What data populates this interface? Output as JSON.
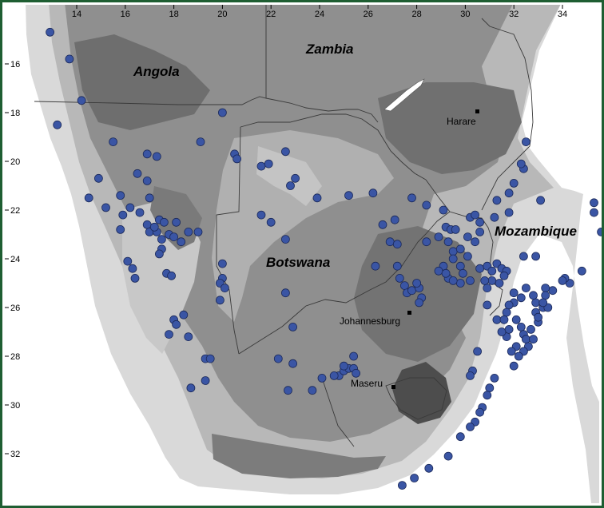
{
  "map": {
    "x_ticks": [
      "14",
      "16",
      "18",
      "20",
      "22",
      "24",
      "26",
      "28",
      "30",
      "32",
      "34"
    ],
    "y_ticks": [
      "16",
      "18",
      "20",
      "22",
      "24",
      "26",
      "28",
      "30",
      "32"
    ],
    "countries": {
      "angola": "Angola",
      "zambia": "Zambia",
      "botswana": "Botswana",
      "mozambique": "Mozambique"
    },
    "cities": {
      "harare": "Harare",
      "johannesburg": "Johannesburg",
      "maseru": "Maseru"
    },
    "colors": {
      "frame": "#1e5e32",
      "point_fill": "#3a55a4",
      "point_stroke": "#1c2a5a",
      "sea": "#ffffff",
      "lowland": "#d9d9d9",
      "mid": "#b8b8b8",
      "highland": "#8f8f8f",
      "mountain": "#6a6a6a"
    },
    "occurrences": [
      [
        12.9,
        14.7
      ],
      [
        13.7,
        15.8
      ],
      [
        14.2,
        17.5
      ],
      [
        13.2,
        18.5
      ],
      [
        15.5,
        19.2
      ],
      [
        14.9,
        20.7
      ],
      [
        14.5,
        21.5
      ],
      [
        15.2,
        21.9
      ],
      [
        15.8,
        21.4
      ],
      [
        16.2,
        21.9
      ],
      [
        16.5,
        20.5
      ],
      [
        16.9,
        20.8
      ],
      [
        16.9,
        19.7
      ],
      [
        17.3,
        19.8
      ],
      [
        17.0,
        21.5
      ],
      [
        16.6,
        22.1
      ],
      [
        16.9,
        22.6
      ],
      [
        17.0,
        22.9
      ],
      [
        17.3,
        22.9
      ],
      [
        17.4,
        22.4
      ],
      [
        17.6,
        22.5
      ],
      [
        17.2,
        22.7
      ],
      [
        17.5,
        23.2
      ],
      [
        17.5,
        23.6
      ],
      [
        17.4,
        23.8
      ],
      [
        17.8,
        23.0
      ],
      [
        18.1,
        22.5
      ],
      [
        18.0,
        23.1
      ],
      [
        18.3,
        23.3
      ],
      [
        18.6,
        22.9
      ],
      [
        19.0,
        22.9
      ],
      [
        17.7,
        24.6
      ],
      [
        17.9,
        24.7
      ],
      [
        16.1,
        24.1
      ],
      [
        16.3,
        24.4
      ],
      [
        16.4,
        24.8
      ],
      [
        15.8,
        22.8
      ],
      [
        15.9,
        22.2
      ],
      [
        18.0,
        26.5
      ],
      [
        18.1,
        26.7
      ],
      [
        18.4,
        26.3
      ],
      [
        18.6,
        27.2
      ],
      [
        17.8,
        27.1
      ],
      [
        19.3,
        28.1
      ],
      [
        19.5,
        28.1
      ],
      [
        19.3,
        29.0
      ],
      [
        18.7,
        29.3
      ],
      [
        19.1,
        19.2
      ],
      [
        20.0,
        18.0
      ],
      [
        20.5,
        19.7
      ],
      [
        20.6,
        19.9
      ],
      [
        21.6,
        20.2
      ],
      [
        21.9,
        20.1
      ],
      [
        22.6,
        19.6
      ],
      [
        23.0,
        20.7
      ],
      [
        22.8,
        21.0
      ],
      [
        21.6,
        22.2
      ],
      [
        22.0,
        22.5
      ],
      [
        22.6,
        23.2
      ],
      [
        23.9,
        21.5
      ],
      [
        20.0,
        24.2
      ],
      [
        20.0,
        24.8
      ],
      [
        19.9,
        25.0
      ],
      [
        20.1,
        25.2
      ],
      [
        19.9,
        25.7
      ],
      [
        22.6,
        25.4
      ],
      [
        22.9,
        26.8
      ],
      [
        22.3,
        28.1
      ],
      [
        22.9,
        28.3
      ],
      [
        22.7,
        29.4
      ],
      [
        23.7,
        29.4
      ],
      [
        24.1,
        28.9
      ],
      [
        24.8,
        28.8
      ],
      [
        25.0,
        28.6
      ],
      [
        25.2,
        28.5
      ],
      [
        25.4,
        28.5
      ],
      [
        25.5,
        28.7
      ],
      [
        25.4,
        28.0
      ],
      [
        25.2,
        21.4
      ],
      [
        26.2,
        21.3
      ],
      [
        26.6,
        22.6
      ],
      [
        26.9,
        23.3
      ],
      [
        27.1,
        22.4
      ],
      [
        26.3,
        24.3
      ],
      [
        27.2,
        24.3
      ],
      [
        27.5,
        25.1
      ],
      [
        27.6,
        25.4
      ],
      [
        27.8,
        25.3
      ],
      [
        28.1,
        25.2
      ],
      [
        28.2,
        25.6
      ],
      [
        28.1,
        25.8
      ],
      [
        27.2,
        23.4
      ],
      [
        27.8,
        21.5
      ],
      [
        28.4,
        21.8
      ],
      [
        28.4,
        23.3
      ],
      [
        29.2,
        22.7
      ],
      [
        29.4,
        22.8
      ],
      [
        29.1,
        22.0
      ],
      [
        29.6,
        22.8
      ],
      [
        28.9,
        23.1
      ],
      [
        29.3,
        23.3
      ],
      [
        29.5,
        23.7
      ],
      [
        29.5,
        24.0
      ],
      [
        29.8,
        23.6
      ],
      [
        30.1,
        23.1
      ],
      [
        30.2,
        22.3
      ],
      [
        30.4,
        22.2
      ],
      [
        30.6,
        22.5
      ],
      [
        30.6,
        22.9
      ],
      [
        30.4,
        23.3
      ],
      [
        30.1,
        23.9
      ],
      [
        29.8,
        24.3
      ],
      [
        29.9,
        24.6
      ],
      [
        29.8,
        25.0
      ],
      [
        30.2,
        24.9
      ],
      [
        29.3,
        24.8
      ],
      [
        29.1,
        24.3
      ],
      [
        28.9,
        24.5
      ],
      [
        29.2,
        24.6
      ],
      [
        29.5,
        24.9
      ],
      [
        30.6,
        24.4
      ],
      [
        30.9,
        24.3
      ],
      [
        31.1,
        24.5
      ],
      [
        31.3,
        24.2
      ],
      [
        31.5,
        24.4
      ],
      [
        31.7,
        24.5
      ],
      [
        31.6,
        24.7
      ],
      [
        31.4,
        25.0
      ],
      [
        31.1,
        24.9
      ],
      [
        30.9,
        25.2
      ],
      [
        30.8,
        24.9
      ],
      [
        31.2,
        22.3
      ],
      [
        31.8,
        22.1
      ],
      [
        31.3,
        21.6
      ],
      [
        31.8,
        21.3
      ],
      [
        32.0,
        20.9
      ],
      [
        32.4,
        20.3
      ],
      [
        32.3,
        20.1
      ],
      [
        32.5,
        19.2
      ],
      [
        33.1,
        21.6
      ],
      [
        32.4,
        23.9
      ],
      [
        32.9,
        23.9
      ],
      [
        35.3,
        21.7
      ],
      [
        35.3,
        22.1
      ],
      [
        35.6,
        22.9
      ],
      [
        34.8,
        24.5
      ],
      [
        34.3,
        25.0
      ],
      [
        34.1,
        24.8
      ],
      [
        34.0,
        24.9
      ],
      [
        33.6,
        25.3
      ],
      [
        33.3,
        25.2
      ],
      [
        33.3,
        25.5
      ],
      [
        32.9,
        25.8
      ],
      [
        32.9,
        26.2
      ],
      [
        33.0,
        26.6
      ],
      [
        33.2,
        26.0
      ],
      [
        33.4,
        26.0
      ],
      [
        33.2,
        25.8
      ],
      [
        32.8,
        25.5
      ],
      [
        32.5,
        25.2
      ],
      [
        32.3,
        25.6
      ],
      [
        32.0,
        25.4
      ],
      [
        32.0,
        25.8
      ],
      [
        31.8,
        25.9
      ],
      [
        31.7,
        26.2
      ],
      [
        32.1,
        26.5
      ],
      [
        32.3,
        26.8
      ],
      [
        32.4,
        27.1
      ],
      [
        32.5,
        27.3
      ],
      [
        32.7,
        26.9
      ],
      [
        33.0,
        26.4
      ],
      [
        32.8,
        27.3
      ],
      [
        32.6,
        27.6
      ],
      [
        32.4,
        27.8
      ],
      [
        32.1,
        27.6
      ],
      [
        31.9,
        27.8
      ],
      [
        32.2,
        28.0
      ],
      [
        32.0,
        28.4
      ],
      [
        31.7,
        27.2
      ],
      [
        31.5,
        27.0
      ],
      [
        31.8,
        26.9
      ],
      [
        30.9,
        25.9
      ],
      [
        31.3,
        26.5
      ],
      [
        31.6,
        26.5
      ],
      [
        30.5,
        27.8
      ],
      [
        30.3,
        28.6
      ],
      [
        30.2,
        28.8
      ],
      [
        31.2,
        28.9
      ],
      [
        31.0,
        29.3
      ],
      [
        30.9,
        29.6
      ],
      [
        30.7,
        30.1
      ],
      [
        30.6,
        30.3
      ],
      [
        30.4,
        30.7
      ],
      [
        30.2,
        30.9
      ],
      [
        29.8,
        31.3
      ],
      [
        29.3,
        32.1
      ],
      [
        28.5,
        32.6
      ],
      [
        27.9,
        33.0
      ],
      [
        27.4,
        33.3
      ],
      [
        24.6,
        28.8
      ],
      [
        25.0,
        28.4
      ],
      [
        28.0,
        25.0
      ],
      [
        27.3,
        24.8
      ]
    ]
  }
}
